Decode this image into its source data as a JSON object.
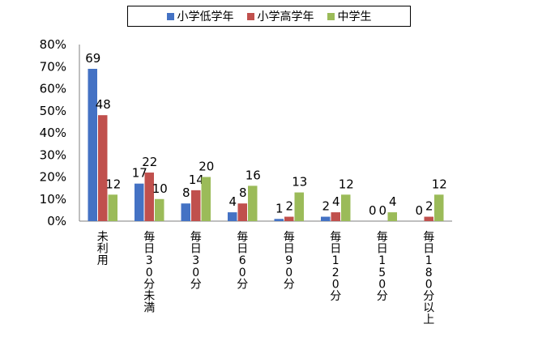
{
  "colors": {
    "elementary_low": "#4472C4",
    "elementary_high": "#C0504D",
    "junior_high": "#9BBB59",
    "axis": "#7f7f7f"
  },
  "chart_data": {
    "type": "bar",
    "categories": [
      "未利用",
      "毎日30分未満",
      "毎日30分",
      "毎日60分",
      "毎日90分",
      "毎日120分",
      "毎日150分",
      "毎日180分以上"
    ],
    "series": [
      {
        "name": "小学低学年",
        "values": [
          69,
          17,
          8,
          4,
          1,
          2,
          0,
          0
        ],
        "labels": [
          "69",
          "17",
          "8",
          "4",
          "1",
          "2",
          "0",
          "0"
        ]
      },
      {
        "name": "小学高学年",
        "values": [
          48,
          22,
          14,
          8,
          2,
          4,
          0,
          2
        ],
        "labels": [
          "48",
          "22",
          "14",
          "8",
          "2",
          "4",
          "0",
          "2"
        ]
      },
      {
        "name": "中学生",
        "values": [
          12,
          10,
          20,
          16,
          13,
          12,
          4,
          12
        ],
        "labels": [
          "12",
          "10",
          "20",
          "16",
          "13",
          "12",
          "4",
          "12"
        ]
      }
    ],
    "yticks": [
      "0%",
      "10%",
      "20%",
      "30%",
      "40%",
      "50%",
      "60%",
      "70%",
      "80%"
    ],
    "ylim": [
      0,
      80
    ],
    "legend_position": "top",
    "grid": false
  }
}
